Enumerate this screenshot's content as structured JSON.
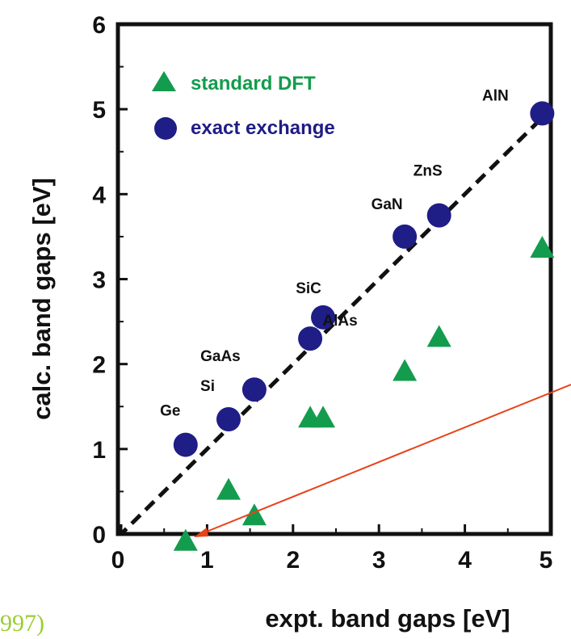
{
  "colors": {
    "dft": "#139c4d",
    "exx": "#1f1d86",
    "arrow": "#e8431a",
    "fragment": "#9acd32",
    "axis": "#111111"
  },
  "fragment_text": "997)",
  "chart_data": {
    "type": "scatter",
    "xlabel": "expt. band gaps [eV]",
    "ylabel": "calc. band gaps [eV]",
    "xlim": [
      0,
      5
    ],
    "ylim": [
      0,
      6
    ],
    "xticks": [
      0,
      1,
      2,
      3,
      4,
      5
    ],
    "yticks": [
      0,
      1,
      2,
      3,
      4,
      5,
      6
    ],
    "diagonal": true,
    "legend_position": "top-left",
    "series": [
      {
        "name": "standard DFT",
        "marker": "triangle",
        "color": "#139c4d",
        "points": [
          {
            "x": 0.75,
            "y": -0.1
          },
          {
            "x": 1.25,
            "y": 0.5
          },
          {
            "x": 1.55,
            "y": 0.2
          },
          {
            "x": 2.2,
            "y": 1.35
          },
          {
            "x": 2.35,
            "y": 1.35
          },
          {
            "x": 3.3,
            "y": 1.9
          },
          {
            "x": 3.7,
            "y": 2.3
          },
          {
            "x": 4.9,
            "y": 3.35
          }
        ]
      },
      {
        "name": "exact exchange",
        "marker": "circle",
        "color": "#1f1d86",
        "points": [
          {
            "x": 0.75,
            "y": 1.05,
            "label": "Ge"
          },
          {
            "x": 1.25,
            "y": 1.35,
            "label": "Si"
          },
          {
            "x": 1.55,
            "y": 1.7,
            "label": "GaAs"
          },
          {
            "x": 2.2,
            "y": 2.3,
            "label": "AlAs"
          },
          {
            "x": 2.35,
            "y": 2.55,
            "label": "SiC"
          },
          {
            "x": 3.3,
            "y": 3.5,
            "label": "GaN"
          },
          {
            "x": 3.7,
            "y": 3.75,
            "label": "ZnS"
          },
          {
            "x": 4.9,
            "y": 4.95,
            "label": "AlN"
          }
        ]
      }
    ]
  }
}
